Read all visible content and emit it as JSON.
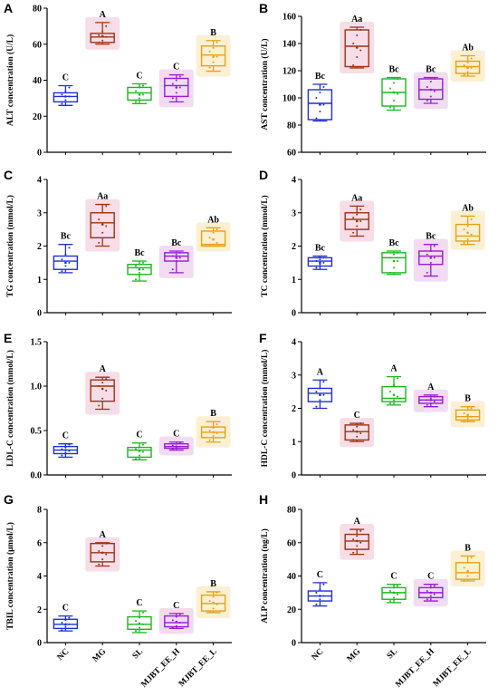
{
  "chart_data": [
    {
      "type": "box",
      "panel": "A",
      "ylabel": "ALT concentration (U/L)",
      "ylim": [
        0,
        80
      ],
      "yticks": [
        0,
        20,
        40,
        60,
        80
      ],
      "ytick_labels": [
        "0",
        "20",
        "40",
        "60",
        "80"
      ],
      "show_x_labels": false,
      "boxes": [
        {
          "min": 26,
          "q1": 28,
          "median": 31,
          "q3": 33,
          "max": 37,
          "mean": 31,
          "points": [
            27,
            29,
            31,
            32,
            34,
            36
          ],
          "sig": "C"
        },
        {
          "min": 60,
          "q1": 61,
          "median": 64,
          "q3": 66,
          "max": 72,
          "mean": 64.5,
          "points": [
            61,
            62,
            64,
            65,
            67,
            70
          ],
          "sig": "A"
        },
        {
          "min": 27,
          "q1": 29,
          "median": 33,
          "q3": 36,
          "max": 38,
          "mean": 32,
          "points": [
            28,
            30,
            32,
            34,
            36,
            37
          ],
          "sig": "C"
        },
        {
          "min": 28,
          "q1": 31,
          "median": 37,
          "q3": 41,
          "max": 43,
          "mean": 36,
          "points": [
            30,
            33,
            36,
            38,
            40,
            42
          ],
          "sig": "C"
        },
        {
          "min": 45,
          "q1": 48,
          "median": 54,
          "q3": 59,
          "max": 62,
          "mean": 53,
          "points": [
            47,
            50,
            53,
            56,
            58,
            61
          ],
          "sig": "B"
        }
      ]
    },
    {
      "type": "box",
      "panel": "B",
      "ylabel": "AST concentration (U/L)",
      "ylim": [
        60,
        160
      ],
      "yticks": [
        60,
        80,
        100,
        120,
        140,
        160
      ],
      "ytick_labels": [
        "60",
        "80",
        "100",
        "120",
        "140",
        "160"
      ],
      "show_x_labels": false,
      "boxes": [
        {
          "min": 83,
          "q1": 84,
          "median": 96,
          "q3": 106,
          "max": 110,
          "mean": 95,
          "points": [
            85,
            90,
            95,
            100,
            104,
            108
          ],
          "sig": "Bc"
        },
        {
          "min": 122,
          "q1": 123,
          "median": 138,
          "q3": 150,
          "max": 152,
          "mean": 137,
          "points": [
            124,
            130,
            135,
            140,
            146,
            150
          ],
          "sig": "Aa"
        },
        {
          "min": 91,
          "q1": 94,
          "median": 104,
          "q3": 114,
          "max": 115,
          "mean": 104,
          "points": [
            93,
            98,
            103,
            107,
            111,
            114
          ],
          "sig": "Bc"
        },
        {
          "min": 96,
          "q1": 99,
          "median": 106,
          "q3": 114,
          "max": 115,
          "mean": 106,
          "points": [
            98,
            101,
            105,
            108,
            112,
            114
          ],
          "sig": "Bc"
        },
        {
          "min": 116,
          "q1": 118,
          "median": 123,
          "q3": 127,
          "max": 131,
          "mean": 122,
          "points": [
            117,
            119,
            122,
            124,
            126,
            129
          ],
          "sig": "Ab"
        }
      ]
    },
    {
      "type": "box",
      "panel": "C",
      "ylabel": "TG concentration (mmol/L)",
      "ylim": [
        0,
        4
      ],
      "yticks": [
        0,
        1,
        2,
        3,
        4
      ],
      "ytick_labels": [
        "0",
        "1",
        "2",
        "3",
        "4"
      ],
      "show_x_labels": false,
      "boxes": [
        {
          "min": 1.2,
          "q1": 1.3,
          "median": 1.55,
          "q3": 1.7,
          "max": 2.05,
          "mean": 1.5,
          "points": [
            1.25,
            1.4,
            1.5,
            1.6,
            1.75,
            1.95
          ],
          "sig": "Bc"
        },
        {
          "min": 2.0,
          "q1": 2.25,
          "median": 2.7,
          "q3": 3.0,
          "max": 3.25,
          "mean": 2.65,
          "points": [
            2.1,
            2.4,
            2.6,
            2.8,
            3.0,
            3.2
          ],
          "sig": "Aa"
        },
        {
          "min": 0.95,
          "q1": 1.15,
          "median": 1.35,
          "q3": 1.45,
          "max": 1.55,
          "mean": 1.3,
          "points": [
            1.0,
            1.2,
            1.3,
            1.4,
            1.45,
            1.5
          ],
          "sig": "Bc"
        },
        {
          "min": 1.2,
          "q1": 1.55,
          "median": 1.7,
          "q3": 1.8,
          "max": 1.85,
          "mean": 1.65,
          "points": [
            1.3,
            1.55,
            1.65,
            1.7,
            1.75,
            1.8
          ],
          "sig": "Bc"
        },
        {
          "min": 2.0,
          "q1": 2.0,
          "median": 2.05,
          "q3": 2.45,
          "max": 2.55,
          "mean": 2.2,
          "points": [
            2.0,
            2.05,
            2.1,
            2.25,
            2.4,
            2.5
          ],
          "sig": "Ab"
        }
      ]
    },
    {
      "type": "box",
      "panel": "D",
      "ylabel": "TC concentration (mmol/L)",
      "ylim": [
        0,
        4
      ],
      "yticks": [
        0,
        1,
        2,
        3,
        4
      ],
      "ytick_labels": [
        "0",
        "1",
        "2",
        "3",
        "4"
      ],
      "show_x_labels": false,
      "boxes": [
        {
          "min": 1.3,
          "q1": 1.4,
          "median": 1.55,
          "q3": 1.65,
          "max": 1.7,
          "mean": 1.5,
          "points": [
            1.35,
            1.45,
            1.5,
            1.55,
            1.6,
            1.65
          ],
          "sig": "Bc"
        },
        {
          "min": 2.3,
          "q1": 2.5,
          "median": 2.8,
          "q3": 3.0,
          "max": 3.2,
          "mean": 2.75,
          "points": [
            2.4,
            2.6,
            2.75,
            2.85,
            2.95,
            3.1
          ],
          "sig": "Aa"
        },
        {
          "min": 1.15,
          "q1": 1.2,
          "median": 1.65,
          "q3": 1.8,
          "max": 1.85,
          "mean": 1.55,
          "points": [
            1.2,
            1.35,
            1.55,
            1.65,
            1.75,
            1.8
          ],
          "sig": "Bc"
        },
        {
          "min": 1.1,
          "q1": 1.45,
          "median": 1.7,
          "q3": 1.85,
          "max": 2.05,
          "mean": 1.65,
          "points": [
            1.2,
            1.5,
            1.65,
            1.75,
            1.85,
            2.0
          ],
          "sig": "Bc"
        },
        {
          "min": 2.05,
          "q1": 2.15,
          "median": 2.3,
          "q3": 2.65,
          "max": 2.9,
          "mean": 2.4,
          "points": [
            2.1,
            2.2,
            2.35,
            2.5,
            2.6,
            2.8
          ],
          "sig": "Ab"
        }
      ]
    },
    {
      "type": "box",
      "panel": "E",
      "ylabel": "LDL-C concentration (mmol/L)",
      "ylim": [
        0,
        1.5
      ],
      "yticks": [
        0,
        0.5,
        1.0,
        1.5
      ],
      "ytick_labels": [
        "0.0",
        "0.5",
        "1.0",
        "1.5"
      ],
      "show_x_labels": false,
      "boxes": [
        {
          "min": 0.2,
          "q1": 0.24,
          "median": 0.28,
          "q3": 0.32,
          "max": 0.35,
          "mean": 0.28,
          "points": [
            0.22,
            0.25,
            0.27,
            0.29,
            0.31,
            0.34
          ],
          "sig": "C"
        },
        {
          "min": 0.74,
          "q1": 0.83,
          "median": 1.0,
          "q3": 1.07,
          "max": 1.1,
          "mean": 0.97,
          "points": [
            0.78,
            0.86,
            0.95,
            1.0,
            1.04,
            1.08
          ],
          "sig": "A"
        },
        {
          "min": 0.17,
          "q1": 0.2,
          "median": 0.28,
          "q3": 0.31,
          "max": 0.36,
          "mean": 0.27,
          "points": [
            0.18,
            0.22,
            0.26,
            0.29,
            0.31,
            0.34
          ],
          "sig": "C"
        },
        {
          "min": 0.28,
          "q1": 0.3,
          "median": 0.32,
          "q3": 0.35,
          "max": 0.37,
          "mean": 0.32,
          "points": [
            0.29,
            0.31,
            0.32,
            0.33,
            0.35,
            0.36
          ],
          "sig": "C"
        },
        {
          "min": 0.37,
          "q1": 0.42,
          "median": 0.48,
          "q3": 0.54,
          "max": 0.6,
          "mean": 0.48,
          "points": [
            0.39,
            0.44,
            0.47,
            0.5,
            0.53,
            0.57
          ],
          "sig": "B"
        }
      ]
    },
    {
      "type": "box",
      "panel": "F",
      "ylabel": "HDL-C concentration (mmol/L)",
      "ylim": [
        0,
        4
      ],
      "yticks": [
        0,
        1,
        2,
        3,
        4
      ],
      "ytick_labels": [
        "0",
        "1",
        "2",
        "3",
        "4"
      ],
      "show_x_labels": false,
      "boxes": [
        {
          "min": 2.0,
          "q1": 2.2,
          "median": 2.45,
          "q3": 2.6,
          "max": 2.85,
          "mean": 2.4,
          "points": [
            2.05,
            2.25,
            2.4,
            2.5,
            2.6,
            2.8
          ],
          "sig": "A"
        },
        {
          "min": 1.0,
          "q1": 1.05,
          "median": 1.3,
          "q3": 1.5,
          "max": 1.55,
          "mean": 1.3,
          "points": [
            1.05,
            1.15,
            1.25,
            1.35,
            1.45,
            1.55
          ],
          "sig": "C"
        },
        {
          "min": 2.1,
          "q1": 2.2,
          "median": 2.3,
          "q3": 2.65,
          "max": 2.95,
          "mean": 2.4,
          "points": [
            2.15,
            2.25,
            2.35,
            2.5,
            2.7,
            2.9
          ],
          "sig": "A"
        },
        {
          "min": 2.05,
          "q1": 2.15,
          "median": 2.25,
          "q3": 2.35,
          "max": 2.4,
          "mean": 2.25,
          "points": [
            2.1,
            2.15,
            2.2,
            2.25,
            2.3,
            2.35
          ],
          "sig": "A"
        },
        {
          "min": 1.6,
          "q1": 1.65,
          "median": 1.75,
          "q3": 1.95,
          "max": 2.05,
          "mean": 1.8,
          "points": [
            1.6,
            1.7,
            1.75,
            1.85,
            1.95,
            2.0
          ],
          "sig": "B"
        }
      ]
    },
    {
      "type": "box",
      "panel": "G",
      "ylabel": "TBIL concentration (μmol/L)",
      "ylim": [
        0,
        8
      ],
      "yticks": [
        0,
        2,
        4,
        6,
        8
      ],
      "ytick_labels": [
        "0",
        "2",
        "4",
        "6",
        "8"
      ],
      "show_x_labels": true,
      "boxes": [
        {
          "min": 0.7,
          "q1": 0.85,
          "median": 1.1,
          "q3": 1.4,
          "max": 1.6,
          "mean": 1.1,
          "points": [
            0.75,
            0.95,
            1.1,
            1.2,
            1.35,
            1.5
          ],
          "sig": "C"
        },
        {
          "min": 4.6,
          "q1": 4.85,
          "median": 5.4,
          "q3": 5.95,
          "max": 6.0,
          "mean": 5.4,
          "points": [
            4.7,
            5.0,
            5.3,
            5.5,
            5.8,
            5.95
          ],
          "sig": "A"
        },
        {
          "min": 0.6,
          "q1": 0.8,
          "median": 1.1,
          "q3": 1.55,
          "max": 1.9,
          "mean": 1.15,
          "points": [
            0.7,
            0.9,
            1.1,
            1.3,
            1.5,
            1.8
          ],
          "sig": "C"
        },
        {
          "min": 0.85,
          "q1": 0.95,
          "median": 1.2,
          "q3": 1.6,
          "max": 1.75,
          "mean": 1.25,
          "points": [
            0.9,
            1.0,
            1.2,
            1.35,
            1.55,
            1.7
          ],
          "sig": "C"
        },
        {
          "min": 1.8,
          "q1": 1.9,
          "median": 2.35,
          "q3": 2.85,
          "max": 3.05,
          "mean": 2.4,
          "points": [
            1.85,
            2.05,
            2.3,
            2.5,
            2.75,
            3.0
          ],
          "sig": "B"
        }
      ]
    },
    {
      "type": "box",
      "panel": "H",
      "ylabel": "ALP concentration (ng/L)",
      "ylim": [
        0,
        80
      ],
      "yticks": [
        0,
        20,
        40,
        60,
        80
      ],
      "ytick_labels": [
        "0",
        "20",
        "40",
        "60",
        "80"
      ],
      "show_x_labels": true,
      "boxes": [
        {
          "min": 22,
          "q1": 25,
          "median": 28,
          "q3": 31,
          "max": 36,
          "mean": 28,
          "points": [
            23,
            26,
            28,
            30,
            32,
            35
          ],
          "sig": "C"
        },
        {
          "min": 53,
          "q1": 56,
          "median": 61,
          "q3": 65,
          "max": 68,
          "mean": 61,
          "points": [
            54,
            58,
            60,
            62,
            64,
            67
          ],
          "sig": "A"
        },
        {
          "min": 24,
          "q1": 26,
          "median": 30,
          "q3": 33,
          "max": 35,
          "mean": 30,
          "points": [
            25,
            27,
            29,
            31,
            33,
            34
          ],
          "sig": "C"
        },
        {
          "min": 25,
          "q1": 27,
          "median": 30,
          "q3": 33,
          "max": 35,
          "mean": 30,
          "points": [
            26,
            28,
            29,
            31,
            33,
            34
          ],
          "sig": "C"
        },
        {
          "min": 37,
          "q1": 38,
          "median": 42,
          "q3": 48,
          "max": 52,
          "mean": 43,
          "points": [
            37,
            40,
            42,
            45,
            48,
            51
          ],
          "sig": "B"
        }
      ]
    }
  ],
  "groups": [
    "NC",
    "MG",
    "SL",
    "MJBT_EE_H",
    "MJBT_EE_L"
  ],
  "group_colors": [
    "#1f2fd6",
    "#9c3313",
    "#1ab81a",
    "#9b1ad6",
    "#e3a21a"
  ],
  "group_backgrounds": [
    "none",
    "#f7dde8",
    "none",
    "#f1dcf3",
    "#fbf0d4"
  ]
}
